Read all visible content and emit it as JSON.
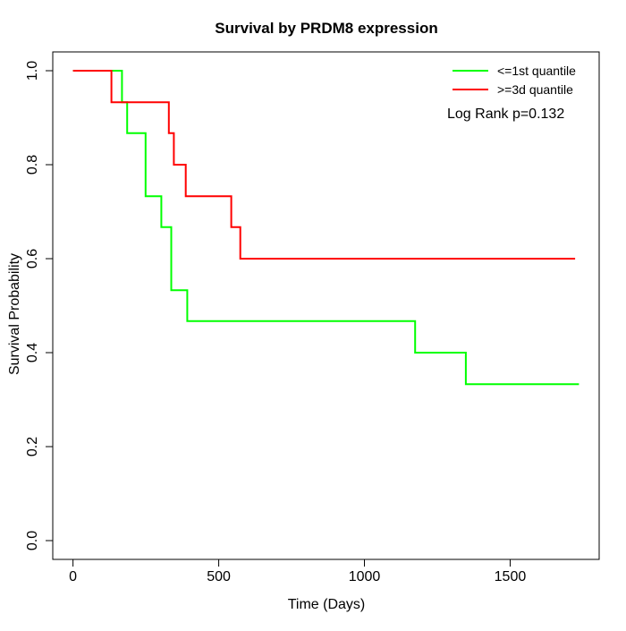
{
  "chart_data": {
    "type": "line",
    "subtype": "kaplan-meier-step",
    "title": "Survival by PRDM8 expression",
    "xlabel": "Time (Days)",
    "ylabel": "Survival Probability",
    "xlim": [
      0,
      1736
    ],
    "ylim": [
      0,
      1
    ],
    "grid": false,
    "legend_position": "top-right",
    "x_ticks": [
      {
        "v": 0,
        "label": "0"
      },
      {
        "v": 500,
        "label": "500"
      },
      {
        "v": 1000,
        "label": "1000"
      },
      {
        "v": 1500,
        "label": "1500"
      }
    ],
    "y_ticks": [
      {
        "v": 0.0,
        "label": "0.0"
      },
      {
        "v": 0.2,
        "label": "0.2"
      },
      {
        "v": 0.4,
        "label": "0.4"
      },
      {
        "v": 0.6,
        "label": "0.6"
      },
      {
        "v": 0.8,
        "label": "0.8"
      },
      {
        "v": 1.0,
        "label": "1.0"
      }
    ],
    "series": [
      {
        "name": "<=1st quantile",
        "color": "#00ff00",
        "steps": [
          [
            0,
            1.0
          ],
          [
            168,
            0.933
          ],
          [
            186,
            0.867
          ],
          [
            249,
            0.733
          ],
          [
            303,
            0.667
          ],
          [
            337,
            0.533
          ],
          [
            392,
            0.467
          ],
          [
            1174,
            0.4
          ],
          [
            1348,
            0.333
          ]
        ],
        "end_day": 1736
      },
      {
        "name": ">=3d quantile",
        "color": "#ff0000",
        "steps": [
          [
            0,
            1.0
          ],
          [
            132,
            0.933
          ],
          [
            329,
            0.867
          ],
          [
            346,
            0.8
          ],
          [
            387,
            0.733
          ],
          [
            543,
            0.667
          ],
          [
            574,
            0.6
          ]
        ],
        "end_day": 1723
      }
    ],
    "annotation": "Log Rank p=0.132"
  }
}
